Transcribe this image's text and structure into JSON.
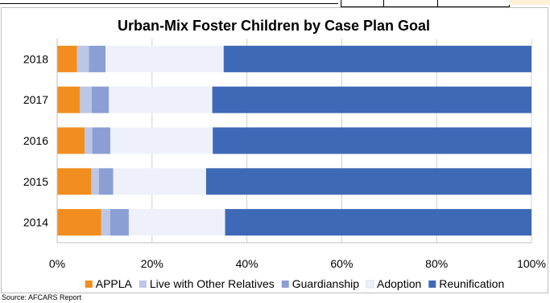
{
  "chart_data": {
    "type": "bar",
    "orientation": "horizontal",
    "stacked": "100%",
    "title": "Urban-Mix  Foster Children by Case Plan Goal",
    "categories": [
      "2018",
      "2017",
      "2016",
      "2015",
      "2014"
    ],
    "x_ticks": [
      "0%",
      "20%",
      "40%",
      "60%",
      "80%",
      "100%"
    ],
    "xlim": [
      0,
      100
    ],
    "grid": "vertical",
    "legend_position": "bottom",
    "series": [
      {
        "name": "APPLA",
        "color": "#f28e1f",
        "values": [
          4.2,
          4.8,
          5.8,
          7.2,
          9.3
        ]
      },
      {
        "name": "Live with Other Relatives",
        "color": "#bcc6e6",
        "values": [
          2.5,
          2.5,
          1.6,
          1.6,
          1.9
        ]
      },
      {
        "name": "Guardianship",
        "color": "#8b9fd4",
        "values": [
          3.5,
          3.6,
          3.8,
          3.0,
          3.9
        ]
      },
      {
        "name": "Adoption",
        "color": "#eff1fa",
        "values": [
          24.9,
          21.8,
          21.6,
          19.6,
          20.3
        ]
      },
      {
        "name": "Reunification",
        "color": "#3e69b6",
        "values": [
          64.9,
          67.3,
          67.2,
          68.6,
          64.6
        ]
      }
    ]
  },
  "footer": {
    "source": "Source: AFCARS Report"
  }
}
